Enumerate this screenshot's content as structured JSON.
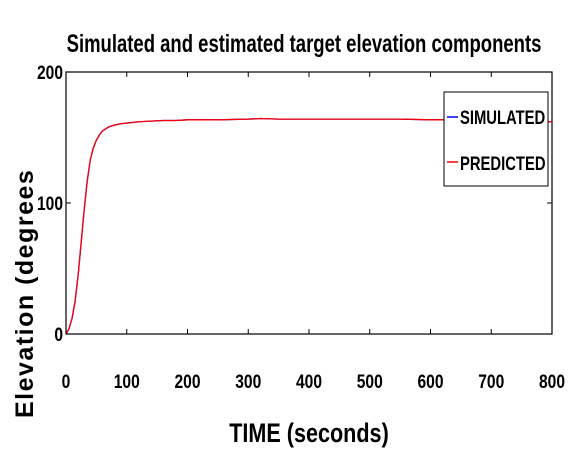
{
  "chart_data": {
    "type": "line",
    "title": "Simulated and estimated target elevation components",
    "xlabel": "TIME (seconds)",
    "ylabel": "Elevation (degrees",
    "xlim": [
      0,
      800
    ],
    "ylim": [
      0,
      200
    ],
    "xticks": [
      0,
      100,
      200,
      300,
      400,
      500,
      600,
      700,
      800
    ],
    "yticks": [
      0,
      100,
      200
    ],
    "grid": false,
    "legend_position": "top-right",
    "colors": {
      "simulated": "#0000ff",
      "predicted": "#ff0000"
    },
    "x": [
      0,
      5,
      10,
      15,
      20,
      25,
      30,
      35,
      40,
      45,
      50,
      55,
      60,
      70,
      80,
      90,
      100,
      120,
      140,
      160,
      180,
      200,
      250,
      300,
      320,
      350,
      400,
      450,
      500,
      550,
      600,
      650,
      700,
      750,
      800
    ],
    "series": [
      {
        "name": "SIMULATED",
        "values": [
          0,
          4,
          12,
          25,
          45,
          70,
          95,
          117,
          133,
          142,
          148,
          152,
          155,
          158,
          159.5,
          160.5,
          161,
          162,
          162.5,
          163,
          163,
          163.5,
          163.5,
          164,
          164.5,
          164,
          164,
          164,
          164,
          164,
          163.5,
          163.5,
          163,
          163,
          162
        ]
      },
      {
        "name": "PREDICTED",
        "values": [
          0,
          4,
          12,
          25,
          45,
          70,
          95,
          117,
          133,
          142,
          148,
          152,
          155,
          158,
          159.5,
          160.5,
          161,
          162,
          162.5,
          163,
          163,
          163.5,
          163.5,
          164,
          164.5,
          164,
          164,
          164,
          164,
          164,
          163.5,
          163.5,
          163,
          163,
          162
        ]
      }
    ]
  }
}
